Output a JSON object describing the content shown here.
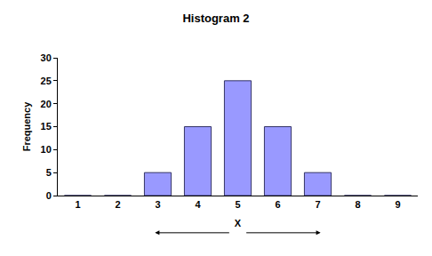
{
  "chart_data": {
    "type": "bar",
    "title": "Histogram 2",
    "x_label": "X",
    "y_label": "Frequency",
    "categories": [
      "1",
      "2",
      "3",
      "4",
      "5",
      "6",
      "7",
      "8",
      "9"
    ],
    "values": [
      0,
      0,
      5,
      15,
      25,
      15,
      5,
      0,
      0
    ],
    "color": "#9999ff",
    "ylim": [
      0,
      30
    ],
    "yticks": [
      0,
      5,
      10,
      15,
      20,
      25,
      30
    ],
    "grid": false
  }
}
